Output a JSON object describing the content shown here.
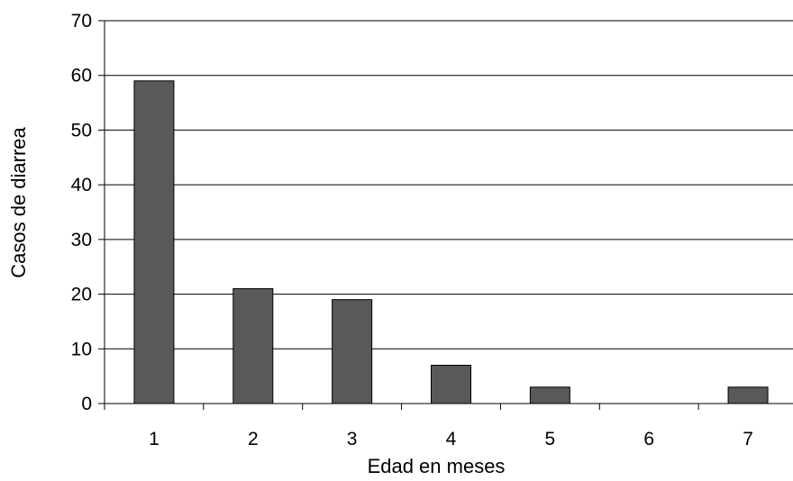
{
  "chart_data": {
    "type": "bar",
    "title": "",
    "xlabel": "Edad en meses",
    "ylabel": "Casos de diarrea",
    "categories": [
      "1",
      "2",
      "3",
      "4",
      "5",
      "6",
      "7"
    ],
    "values": [
      59,
      21,
      19,
      7,
      3,
      0,
      3
    ],
    "ylim": [
      0,
      70
    ],
    "yticks": [
      0,
      10,
      20,
      30,
      40,
      50,
      60,
      70
    ],
    "grid": true,
    "legend": "none",
    "colors": {
      "bar": "#595959",
      "bar_edge": "#000000",
      "grid": "#000000",
      "axis": "#000000"
    }
  }
}
